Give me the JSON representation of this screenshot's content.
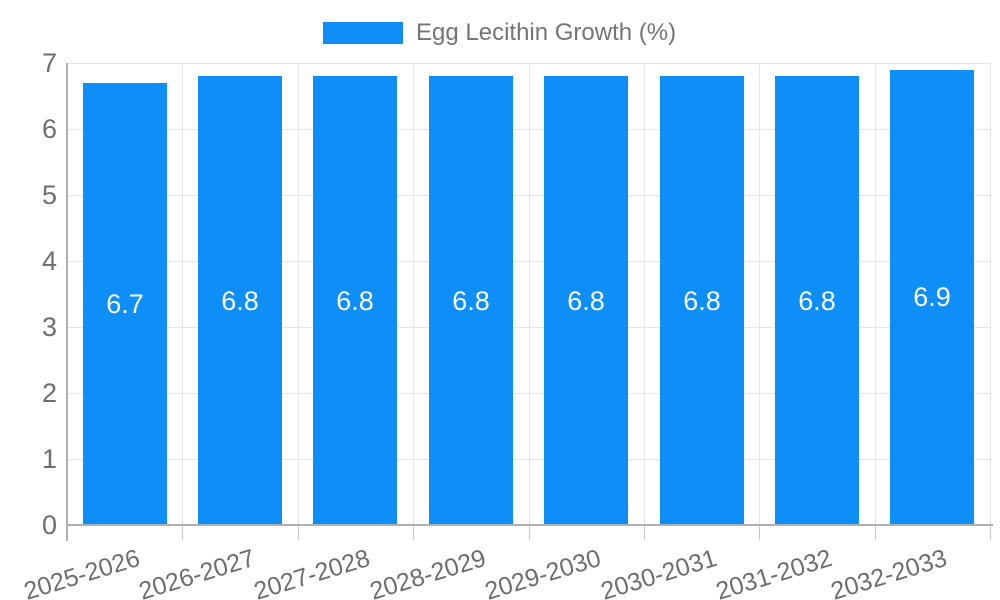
{
  "chart_data": {
    "type": "bar",
    "title": "",
    "legend_label": "Egg Lecithin Growth (%)",
    "legend_position": "top",
    "categories": [
      "2025-2026",
      "2026-2027",
      "2027-2028",
      "2028-2029",
      "2029-2030",
      "2030-2031",
      "2031-2032",
      "2032-2033"
    ],
    "values": [
      6.7,
      6.8,
      6.8,
      6.8,
      6.8,
      6.8,
      6.8,
      6.9
    ],
    "value_labels": [
      "6.7",
      "6.8",
      "6.8",
      "6.8",
      "6.8",
      "6.8",
      "6.8",
      "6.9"
    ],
    "xlabel": "",
    "ylabel": "",
    "ylim": [
      0,
      7
    ],
    "yticks": [
      0,
      1,
      2,
      3,
      4,
      5,
      6,
      7
    ],
    "grid": true,
    "colors": {
      "bar": "#0d8ff7",
      "value_label": "#ffffff",
      "axis_text": "#6e6e6e",
      "legend_text": "#757575",
      "gridline": "#e6e6e6",
      "axis_line": "#b0b0b0",
      "tick": "#c9c9c9",
      "background": "#ffffff"
    }
  }
}
